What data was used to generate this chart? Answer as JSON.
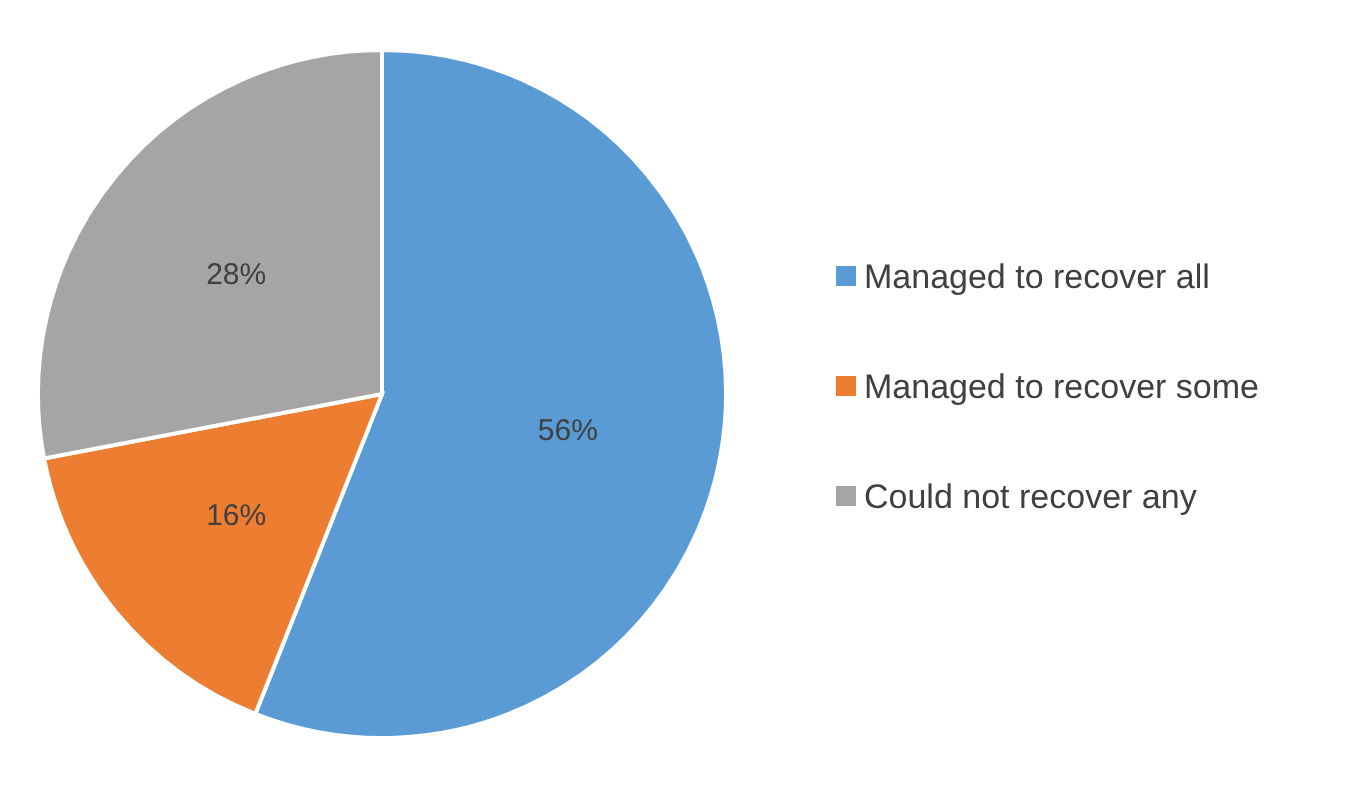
{
  "chart_data": {
    "type": "pie",
    "categories": [
      "Managed to recover all",
      "Managed to recover some",
      "Could not recover any"
    ],
    "values": [
      56,
      16,
      28
    ],
    "colors": [
      "#5b9bd5",
      "#ed7d31",
      "#a5a5a5"
    ],
    "value_labels": [
      "56%",
      "16%",
      "28%"
    ],
    "legend": "right"
  }
}
